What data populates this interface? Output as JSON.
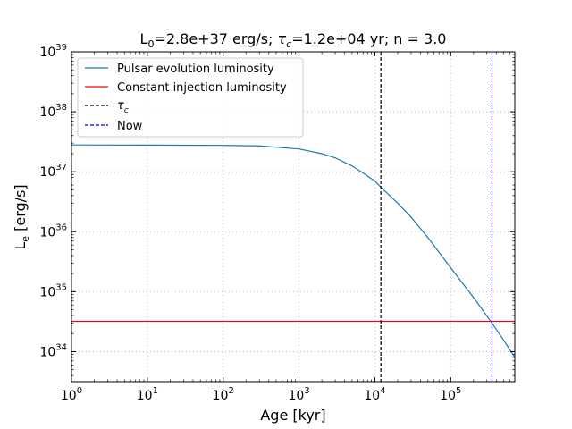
{
  "chart_data": {
    "type": "line",
    "title": {
      "l0_symbol": "L",
      "l0_sub": "0",
      "l0_value": "=2.8e+37 erg/s; ",
      "tau_symbol": "τ",
      "tau_sub": "c",
      "tau_value": "=1.2e+04 yr; n = 3.0"
    },
    "xlabel": "Age [kyr]",
    "ylabel": {
      "symbol": "L",
      "sub": "e",
      "unit": " [erg/s]"
    },
    "x_scale": "log",
    "y_scale": "log",
    "xlim": [
      1,
      700000
    ],
    "ylim": [
      3.16e+33,
      1e+39
    ],
    "x_ticks": [
      {
        "value": 1,
        "base": "10",
        "exp": "0"
      },
      {
        "value": 10,
        "base": "10",
        "exp": "1"
      },
      {
        "value": 100,
        "base": "10",
        "exp": "2"
      },
      {
        "value": 1000,
        "base": "10",
        "exp": "3"
      },
      {
        "value": 10000,
        "base": "10",
        "exp": "4"
      },
      {
        "value": 100000,
        "base": "10",
        "exp": "5"
      }
    ],
    "y_ticks": [
      {
        "value": 1e+34,
        "base": "10",
        "exp": "34"
      },
      {
        "value": 1e+35,
        "base": "10",
        "exp": "35"
      },
      {
        "value": 1e+36,
        "base": "10",
        "exp": "36"
      },
      {
        "value": 1e+37,
        "base": "10",
        "exp": "37"
      },
      {
        "value": 1e+38,
        "base": "10",
        "exp": "38"
      },
      {
        "value": 1e+39,
        "base": "10",
        "exp": "39"
      }
    ],
    "grid": true,
    "grid_style": "dotted",
    "legend_position": "top-left",
    "series": [
      {
        "name": "Pulsar evolution luminosity",
        "color": "#1f77b4",
        "style": "solid",
        "x": [
          1,
          10,
          100,
          300,
          1000,
          2000,
          3000,
          5000,
          7000,
          10000,
          12000,
          20000,
          30000,
          50000,
          100000,
          200000,
          350000,
          500000,
          700000
        ],
        "y": [
          2.8e+37,
          2.78e+37,
          2.75e+37,
          2.7e+37,
          2.4e+37,
          2e+37,
          1.7e+37,
          1.25e+37,
          9.5e+36,
          7e+36,
          5.5e+36,
          3e+36,
          1.75e+36,
          8e+35,
          2.5e+35,
          8e+34,
          3e+34,
          1.55e+34,
          8e+33
        ]
      },
      {
        "name": "Constant injection luminosity",
        "color": "#ff0000",
        "style": "solid",
        "x": [
          1,
          700000
        ],
        "y": [
          3.2e+34,
          3.2e+34
        ]
      }
    ],
    "vlines": [
      {
        "name_symbol": "τ",
        "name_sub": "c",
        "x": 12000,
        "color": "#000000",
        "style": "dashed"
      },
      {
        "name": "Now",
        "x": 350000,
        "color": "#0000ff",
        "style": "dashed"
      }
    ]
  }
}
